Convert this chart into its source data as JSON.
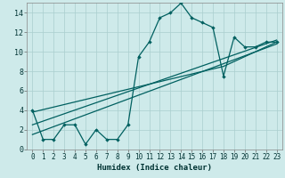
{
  "xlabel": "Humidex (Indice chaleur)",
  "bg_color": "#ceeaea",
  "grid_color": "#aacece",
  "line_color": "#006060",
  "xlim": [
    -0.5,
    23.5
  ],
  "ylim": [
    0,
    15
  ],
  "xticks": [
    0,
    1,
    2,
    3,
    4,
    5,
    6,
    7,
    8,
    9,
    10,
    11,
    12,
    13,
    14,
    15,
    16,
    17,
    18,
    19,
    20,
    21,
    22,
    23
  ],
  "yticks": [
    0,
    2,
    4,
    6,
    8,
    10,
    12,
    14
  ],
  "scatter_x": [
    0,
    1,
    2,
    3,
    4,
    5,
    6,
    7,
    8,
    9,
    10,
    11,
    12,
    13,
    14,
    15,
    16,
    17,
    18,
    19,
    20,
    21,
    22,
    23
  ],
  "scatter_y": [
    4,
    1,
    1,
    2.5,
    2.5,
    0.5,
    2,
    1,
    1,
    2.5,
    9.5,
    11,
    13.5,
    14,
    15,
    13.5,
    13,
    12.5,
    7.5,
    11.5,
    10.5,
    10.5,
    11,
    11
  ],
  "line1_x": [
    0,
    23
  ],
  "line1_y": [
    1.5,
    10.8
  ],
  "line2_x": [
    0,
    23
  ],
  "line2_y": [
    2.5,
    11.2
  ],
  "line3_x": [
    0,
    18,
    23
  ],
  "line3_y": [
    3.8,
    8.5,
    11.0
  ],
  "tick_fontsize": 5.5,
  "xlabel_fontsize": 6.5
}
